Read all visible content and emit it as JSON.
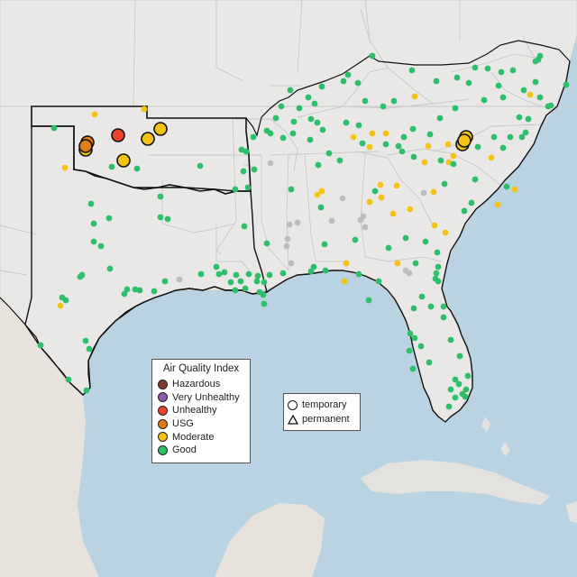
{
  "map": {
    "region": "Southeastern United States",
    "aqi_legend": {
      "title": "Air Quality Index",
      "categories": [
        {
          "label": "Hazardous",
          "color": "#7e3b2f"
        },
        {
          "label": "Very Unhealthy",
          "color": "#8e5ba8"
        },
        {
          "label": "Unhealthy",
          "color": "#e8452c"
        },
        {
          "label": "USG",
          "color": "#e07b16"
        },
        {
          "label": "Moderate",
          "color": "#f2c315"
        },
        {
          "label": "Good",
          "color": "#2dbf6a"
        }
      ]
    },
    "site_legend": {
      "items": [
        {
          "label": "temporary",
          "shape": "circle"
        },
        {
          "label": "permanent",
          "shape": "triangle"
        }
      ]
    },
    "no_data_color": "#bdbdbd",
    "highlighted_state": "Oklahoma"
  }
}
